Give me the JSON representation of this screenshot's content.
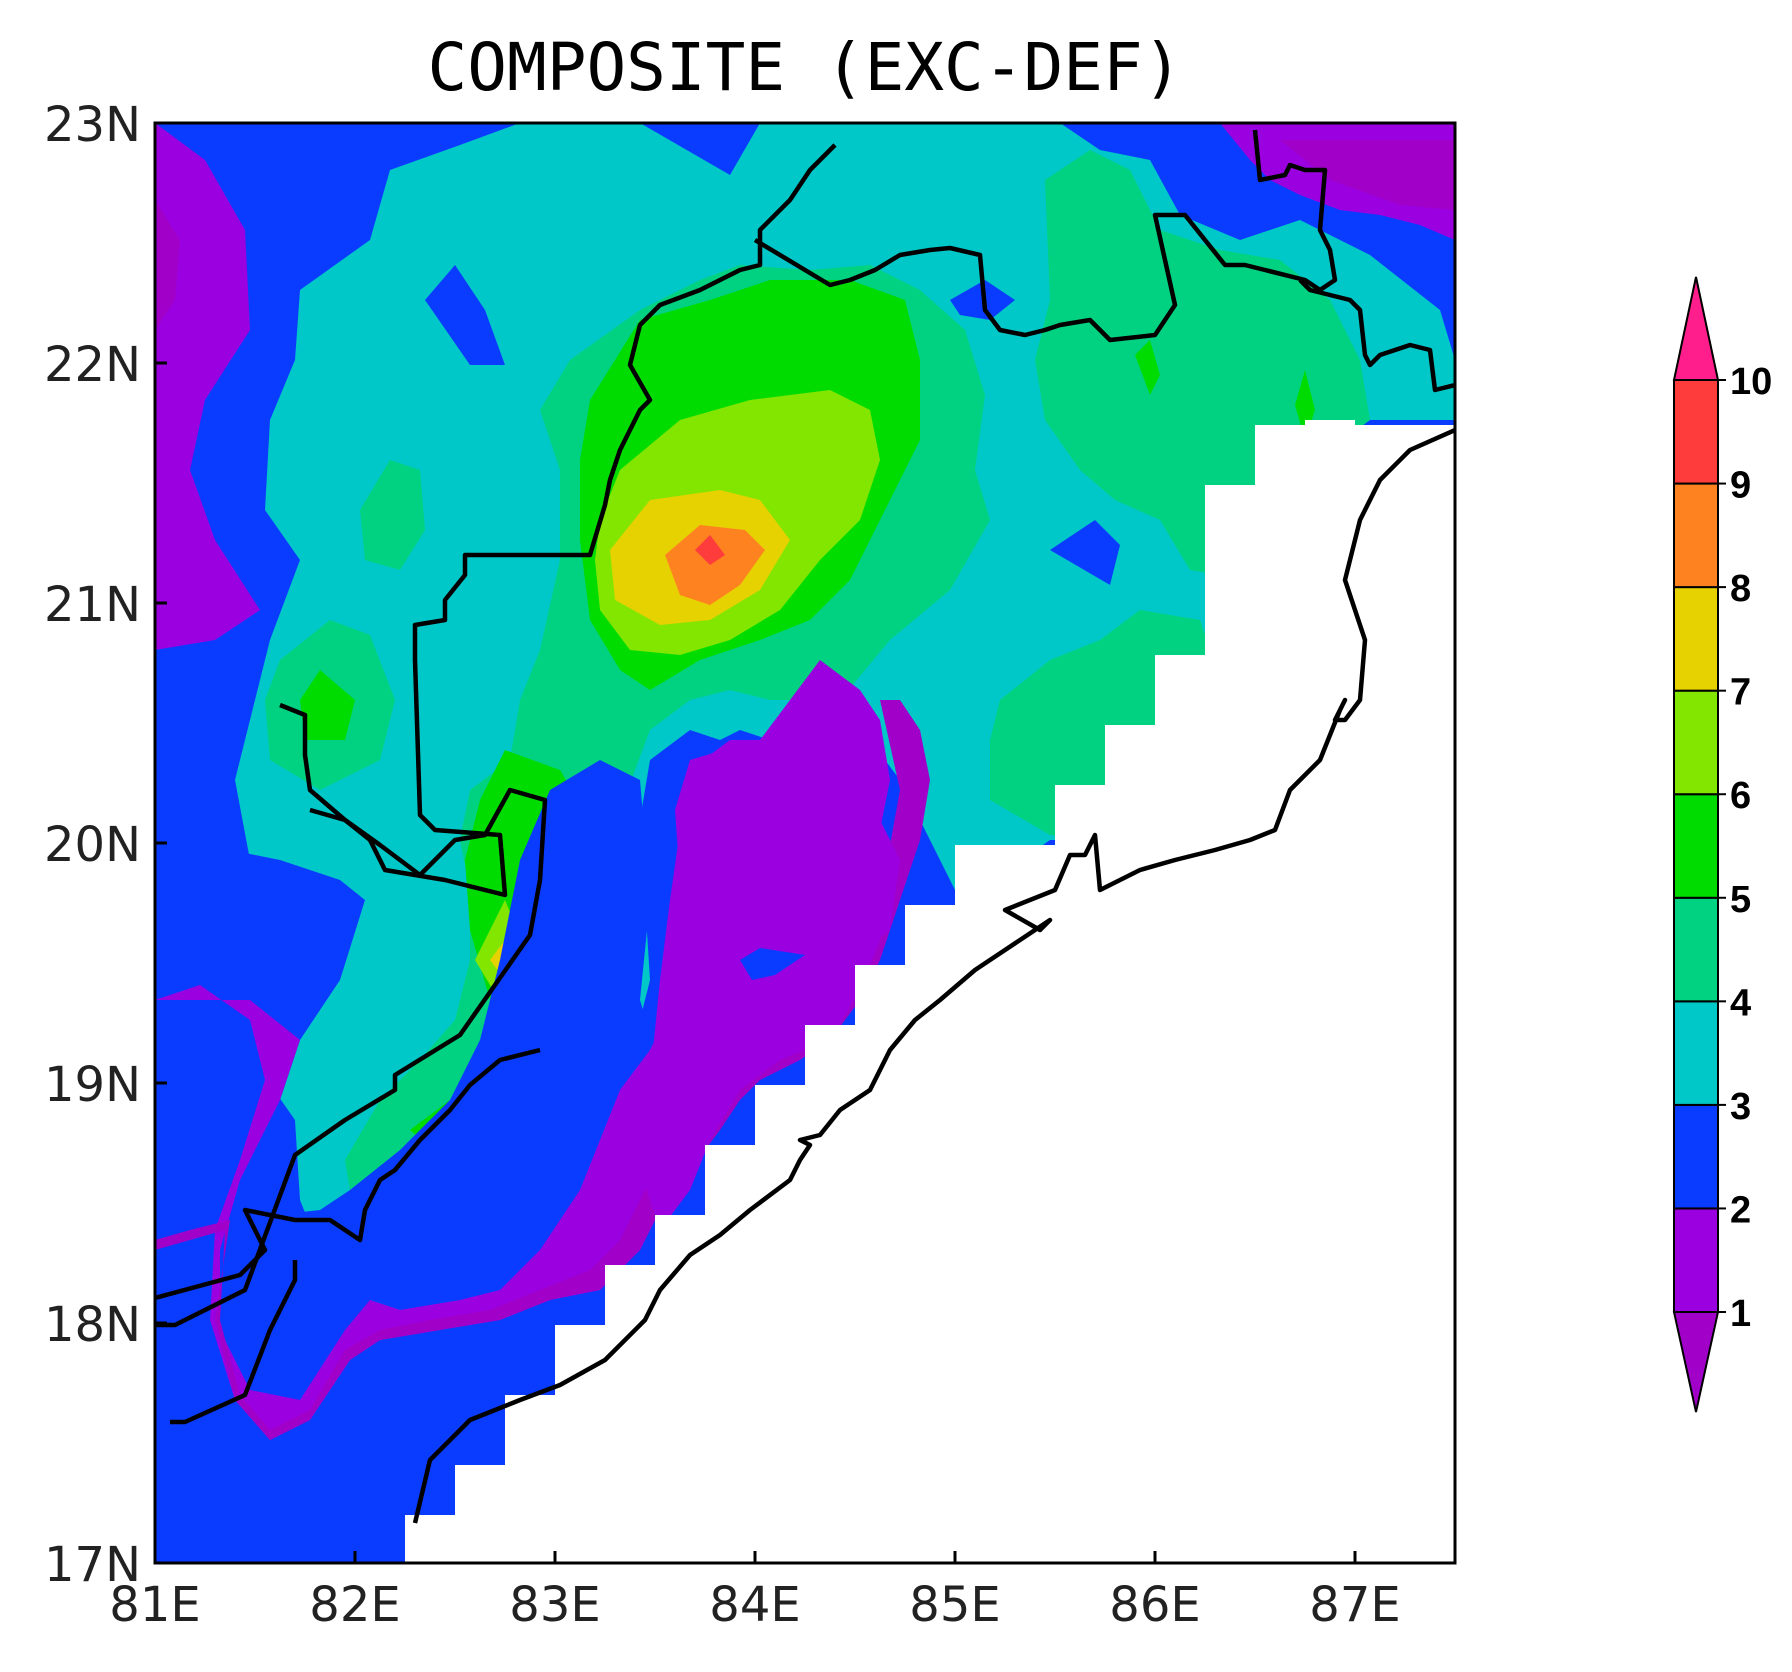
{
  "chart_data": {
    "type": "heatmap",
    "title": "COMPOSITE (EXC-DEF)",
    "x_ticks": [
      "81E",
      "82E",
      "83E",
      "84E",
      "85E",
      "86E",
      "87E"
    ],
    "x_tick_values": [
      81,
      82,
      83,
      84,
      85,
      86,
      87
    ],
    "y_ticks": [
      "17N",
      "18N",
      "19N",
      "20N",
      "21N",
      "22N",
      "23N"
    ],
    "y_tick_values": [
      17,
      18,
      19,
      20,
      21,
      22,
      23
    ],
    "xlim": [
      81,
      87.5
    ],
    "ylim": [
      17,
      23
    ],
    "grid": false,
    "legend": "right colorbar with triangular extensions",
    "colorbar": {
      "levels": [
        1,
        2,
        3,
        4,
        5,
        6,
        7,
        8,
        9,
        10
      ],
      "labels": [
        "1",
        "2",
        "3",
        "4",
        "5",
        "6",
        "7",
        "8",
        "9",
        "10"
      ],
      "colors": [
        "#9b00e0",
        "#0a3cff",
        "#00c8c8",
        "#00d282",
        "#00dc00",
        "#82e600",
        "#e6d200",
        "#ff8220",
        "#ff3c3c",
        "#ff1e8c"
      ],
      "under_color": "#a000c8",
      "over_color": "#ff1e8c"
    },
    "peak": {
      "lon": 83.75,
      "lat": 21.2,
      "value": 9.2
    }
  }
}
